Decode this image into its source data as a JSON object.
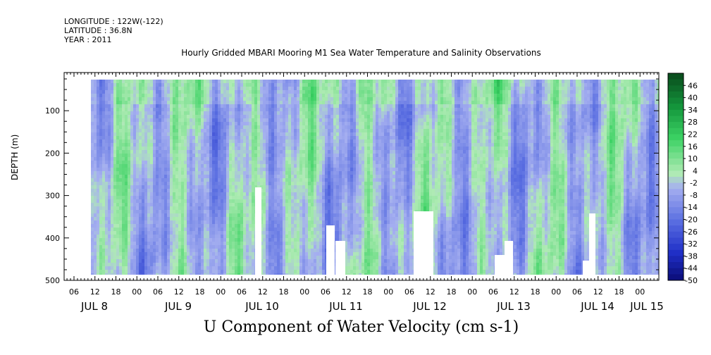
{
  "header": {
    "longitude": "LONGITUDE : 122W(-122)",
    "latitude": "LATITUDE : 36.8N",
    "year": "YEAR : 2011",
    "title": "Hourly Gridded MBARI Mooring M1 Sea Water Temperature and Salinity Observations"
  },
  "chart_data": {
    "type": "heatmap",
    "title": "Hourly Gridded MBARI Mooring M1 Sea Water Temperature and Salinity Observations",
    "xlabel": "",
    "ylabel": "DEPTH (m)",
    "variable": "U Component of Water Velocity (cm s-1)",
    "y_axis": {
      "ticks": [
        100,
        200,
        300,
        400,
        500
      ],
      "ylim": [
        500,
        10
      ],
      "inverted": true
    },
    "x_axis": {
      "hour_labels": [
        "06",
        "12",
        "18",
        "00",
        "06",
        "12",
        "18",
        "00",
        "06",
        "12",
        "18",
        "00",
        "06",
        "12",
        "18",
        "00",
        "06",
        "12",
        "18",
        "00",
        "06",
        "12",
        "18",
        "00",
        "06",
        "12",
        "18",
        "00"
      ],
      "day_labels": [
        "JUL 8",
        "JUL 9",
        "JUL 10",
        "JUL 11",
        "JUL 12",
        "JUL 13",
        "JUL 14",
        "JUL 15"
      ]
    },
    "colorbar": {
      "labels": [
        46,
        40,
        34,
        28,
        22,
        16,
        10,
        4,
        -2,
        -8,
        -14,
        -20,
        -26,
        -32,
        -38,
        -44,
        -50
      ],
      "range": [
        -50,
        52
      ]
    },
    "grid": false
  }
}
